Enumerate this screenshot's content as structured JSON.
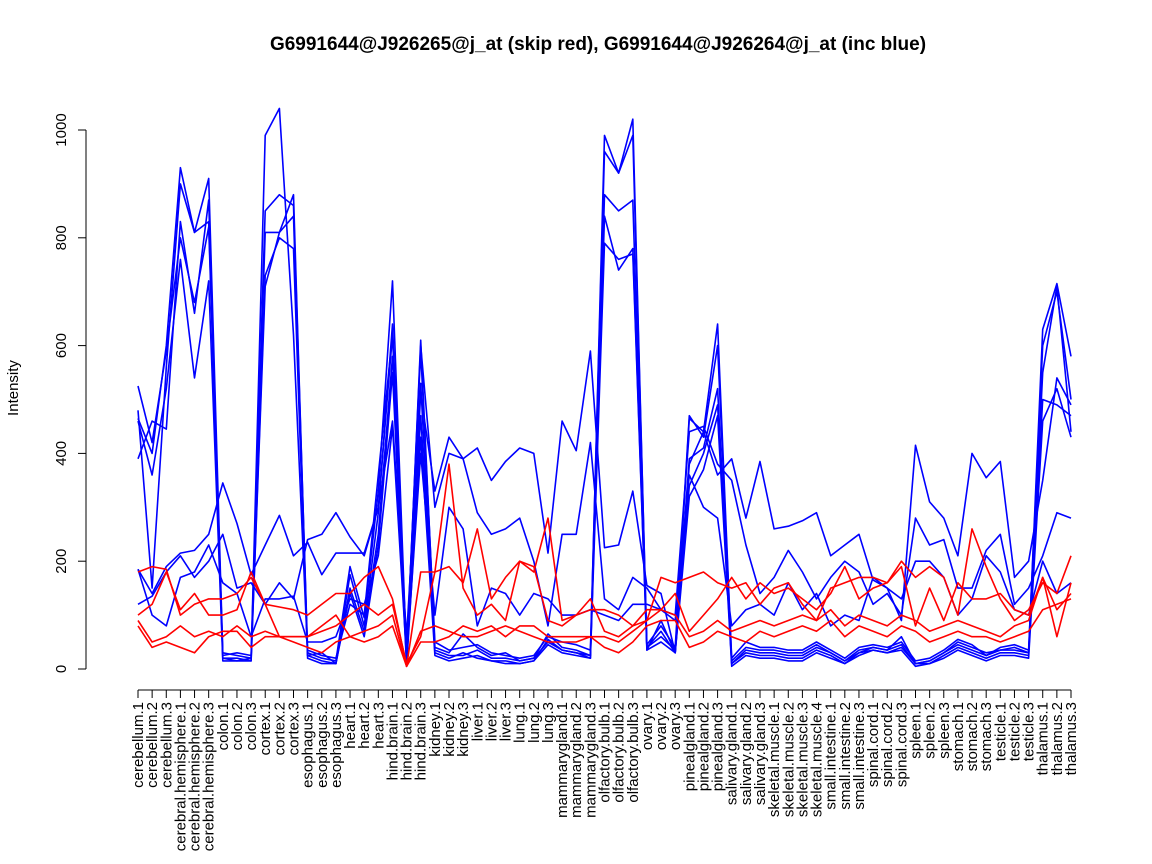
{
  "chart_data": {
    "type": "line",
    "title": "G6991644@J926265@j_at (skip red), G6991644@J926264@j_at (inc blue)",
    "xlabel": "",
    "ylabel": "Intensity",
    "ylim": [
      0,
      1000
    ],
    "yticks": [
      0,
      200,
      400,
      600,
      800,
      1000
    ],
    "categories": [
      "cerebellum.1",
      "cerebellum.2",
      "cerebellum.3",
      "cerebral.hemisphere.1",
      "cerebral.hemisphere.2",
      "cerebral.hemisphere.3",
      "colon.1",
      "colon.2",
      "colon.3",
      "cortex.1",
      "cortex.2",
      "cortex.3",
      "esophagus.1",
      "esophagus.2",
      "esophagus.3",
      "heart.1",
      "heart.2",
      "heart.3",
      "hind.brain.1",
      "hind.brain.2",
      "hind.brain.3",
      "kidney.1",
      "kidney.2",
      "kidney.3",
      "liver.1",
      "liver.2",
      "liver.3",
      "lung.1",
      "lung.2",
      "lung.3",
      "mammarygland.1",
      "mammarygland.2",
      "mammarygland.3",
      "olfactory.bulb.1",
      "olfactory.bulb.2",
      "olfactory.bulb.3",
      "ovary.1",
      "ovary.2",
      "ovary.3",
      "pinealgland.1",
      "pinealgland.2",
      "pinealgland.3",
      "salivary.gland.1",
      "salivary.gland.2",
      "salivary.gland.3",
      "skeletal.muscle.1",
      "skeletal.muscle.2",
      "skeletal.muscle.3",
      "skeletal.muscle.4",
      "small.intestine.1",
      "small.intestine.2",
      "small.intestine.3",
      "spinal.cord.1",
      "spinal.cord.2",
      "spinal.cord.3",
      "spleen.1",
      "spleen.2",
      "spleen.3",
      "stomach.1",
      "stomach.2",
      "stomach.3",
      "testicle.1",
      "testicle.2",
      "testicle.3",
      "thalamus.1",
      "thalamus.2",
      "thalamus.3"
    ],
    "series": [
      {
        "name": "blue-1",
        "color": "#0000ff",
        "values": [
          390,
          460,
          445,
          830,
          660,
          870,
          20,
          15,
          20,
          990,
          1040,
          620,
          30,
          20,
          15,
          190,
          95,
          330,
          720,
          20,
          610,
          40,
          30,
          65,
          40,
          25,
          30,
          15,
          20,
          65,
          40,
          35,
          25,
          990,
          920,
          1020,
          35,
          90,
          30,
          380,
          440,
          640,
          15,
          40,
          35,
          35,
          30,
          30,
          45,
          30,
          15,
          35,
          40,
          35,
          60,
          10,
          15,
          30,
          50,
          40,
          30,
          35,
          40,
          30,
          630,
          715,
          580
        ]
      },
      {
        "name": "blue-2",
        "color": "#0000ff",
        "values": [
          480,
          150,
          560,
          900,
          810,
          910,
          30,
          25,
          20,
          850,
          880,
          860,
          35,
          25,
          20,
          120,
          100,
          360,
          620,
          25,
          590,
          50,
          35,
          40,
          45,
          30,
          25,
          20,
          25,
          60,
          50,
          45,
          35,
          960,
          920,
          990,
          45,
          80,
          40,
          470,
          430,
          600,
          20,
          50,
          40,
          40,
          35,
          35,
          50,
          35,
          20,
          40,
          45,
          40,
          50,
          15,
          20,
          35,
          55,
          45,
          25,
          40,
          45,
          35,
          600,
          700,
          500
        ]
      },
      {
        "name": "blue-3",
        "color": "#0000ff",
        "values": [
          465,
          400,
          600,
          930,
          810,
          830,
          25,
          30,
          25,
          810,
          810,
          880,
          25,
          30,
          10,
          175,
          80,
          290,
          640,
          15,
          530,
          30,
          20,
          30,
          20,
          15,
          15,
          10,
          15,
          55,
          35,
          30,
          20,
          880,
          850,
          870,
          40,
          60,
          35,
          390,
          410,
          520,
          10,
          30,
          25,
          25,
          20,
          20,
          35,
          25,
          10,
          30,
          35,
          30,
          40,
          10,
          10,
          25,
          40,
          30,
          20,
          30,
          30,
          25,
          550,
          710,
          440
        ]
      },
      {
        "name": "blue-4",
        "color": "#0000ff",
        "values": [
          525,
          420,
          590,
          800,
          680,
          820,
          20,
          20,
          15,
          710,
          810,
          840,
          25,
          15,
          10,
          150,
          70,
          250,
          580,
          10,
          470,
          35,
          25,
          25,
          35,
          20,
          20,
          15,
          20,
          50,
          35,
          30,
          25,
          840,
          740,
          780,
          40,
          70,
          30,
          340,
          400,
          490,
          10,
          35,
          30,
          30,
          25,
          25,
          40,
          30,
          15,
          30,
          40,
          35,
          45,
          10,
          15,
          30,
          45,
          35,
          25,
          35,
          35,
          30,
          500,
          490,
          470
        ]
      },
      {
        "name": "blue-5",
        "color": "#0000ff",
        "values": [
          460,
          360,
          520,
          760,
          540,
          720,
          15,
          15,
          15,
          730,
          800,
          780,
          20,
          10,
          10,
          140,
          60,
          230,
          550,
          5,
          430,
          25,
          15,
          20,
          25,
          15,
          10,
          10,
          15,
          45,
          30,
          25,
          20,
          790,
          760,
          770,
          35,
          50,
          30,
          320,
          370,
          470,
          5,
          25,
          20,
          20,
          15,
          15,
          30,
          20,
          10,
          25,
          35,
          30,
          35,
          5,
          10,
          20,
          35,
          25,
          15,
          25,
          25,
          20,
          460,
          520,
          430
        ]
      },
      {
        "name": "blue-6",
        "color": "#0000ff",
        "values": [
          185,
          140,
          190,
          215,
          220,
          250,
          345,
          270,
          175,
          230,
          285,
          210,
          235,
          175,
          215,
          215,
          215,
          300,
          460,
          60,
          510,
          330,
          430,
          390,
          410,
          350,
          385,
          410,
          400,
          215,
          460,
          405,
          590,
          225,
          230,
          330,
          155,
          140,
          30,
          465,
          440,
          360,
          390,
          280,
          385,
          260,
          265,
          275,
          290,
          210,
          230,
          250,
          165,
          150,
          90,
          415,
          310,
          280,
          210,
          400,
          355,
          385,
          170,
          200,
          350,
          540,
          490
        ]
      },
      {
        "name": "blue-7",
        "color": "#0000ff",
        "values": [
          120,
          135,
          180,
          210,
          170,
          200,
          250,
          150,
          160,
          120,
          160,
          130,
          240,
          250,
          290,
          245,
          210,
          300,
          620,
          30,
          600,
          300,
          400,
          390,
          290,
          250,
          260,
          280,
          200,
          80,
          250,
          250,
          420,
          130,
          110,
          170,
          150,
          110,
          100,
          440,
          450,
          380,
          350,
          230,
          140,
          170,
          220,
          180,
          130,
          170,
          200,
          180,
          120,
          140,
          100,
          280,
          230,
          240,
          150,
          150,
          220,
          250,
          120,
          150,
          210,
          290,
          280
        ]
      },
      {
        "name": "blue-8",
        "color": "#0000ff",
        "values": [
          185,
          100,
          80,
          170,
          180,
          230,
          160,
          140,
          60,
          130,
          130,
          135,
          50,
          50,
          60,
          130,
          120,
          210,
          450,
          20,
          400,
          100,
          300,
          260,
          80,
          150,
          140,
          100,
          140,
          130,
          100,
          100,
          110,
          100,
          90,
          120,
          120,
          110,
          90,
          360,
          300,
          280,
          80,
          110,
          120,
          100,
          160,
          110,
          140,
          80,
          100,
          90,
          170,
          150,
          130,
          200,
          200,
          170,
          100,
          130,
          210,
          180,
          110,
          100,
          200,
          140,
          160
        ]
      },
      {
        "name": "red-1",
        "color": "#ff0000",
        "values": [
          180,
          190,
          185,
          100,
          120,
          130,
          130,
          140,
          170,
          120,
          115,
          110,
          100,
          120,
          140,
          140,
          170,
          190,
          130,
          5,
          180,
          180,
          380,
          150,
          100,
          120,
          90,
          200,
          180,
          280,
          90,
          100,
          130,
          70,
          60,
          80,
          90,
          170,
          160,
          170,
          180,
          160,
          150,
          160,
          120,
          150,
          160,
          120,
          90,
          150,
          160,
          170,
          170,
          160,
          200,
          170,
          190,
          170,
          100,
          260,
          190,
          130,
          90,
          110,
          160,
          140,
          210
        ]
      },
      {
        "name": "red-2",
        "color": "#ff0000",
        "values": [
          100,
          120,
          180,
          110,
          140,
          100,
          100,
          110,
          180,
          120,
          60,
          60,
          60,
          70,
          80,
          100,
          120,
          100,
          120,
          10,
          60,
          180,
          190,
          160,
          260,
          130,
          170,
          200,
          190,
          90,
          80,
          100,
          110,
          110,
          100,
          80,
          110,
          110,
          140,
          70,
          100,
          130,
          170,
          130,
          160,
          140,
          150,
          130,
          110,
          140,
          190,
          130,
          150,
          160,
          190,
          80,
          150,
          90,
          160,
          130,
          130,
          140,
          110,
          100,
          170,
          110,
          140
        ]
      },
      {
        "name": "red-3",
        "color": "#ff0000",
        "values": [
          90,
          50,
          60,
          80,
          60,
          70,
          60,
          80,
          60,
          70,
          60,
          60,
          60,
          80,
          100,
          60,
          70,
          80,
          100,
          5,
          50,
          50,
          60,
          80,
          70,
          80,
          60,
          80,
          80,
          60,
          60,
          60,
          60,
          60,
          50,
          70,
          90,
          110,
          100,
          60,
          70,
          90,
          70,
          80,
          90,
          80,
          90,
          100,
          90,
          110,
          80,
          100,
          90,
          80,
          100,
          90,
          70,
          80,
          90,
          80,
          70,
          60,
          80,
          90,
          170,
          60,
          160
        ]
      },
      {
        "name": "red-4",
        "color": "#ff0000",
        "values": [
          80,
          40,
          50,
          40,
          30,
          60,
          70,
          70,
          40,
          60,
          60,
          50,
          40,
          30,
          50,
          60,
          50,
          60,
          80,
          5,
          70,
          80,
          70,
          60,
          60,
          70,
          80,
          70,
          60,
          50,
          50,
          50,
          60,
          40,
          30,
          50,
          80,
          90,
          90,
          40,
          50,
          70,
          60,
          50,
          70,
          60,
          70,
          80,
          70,
          90,
          60,
          80,
          70,
          60,
          80,
          70,
          50,
          60,
          70,
          60,
          60,
          50,
          60,
          70,
          110,
          120,
          130
        ]
      }
    ]
  }
}
